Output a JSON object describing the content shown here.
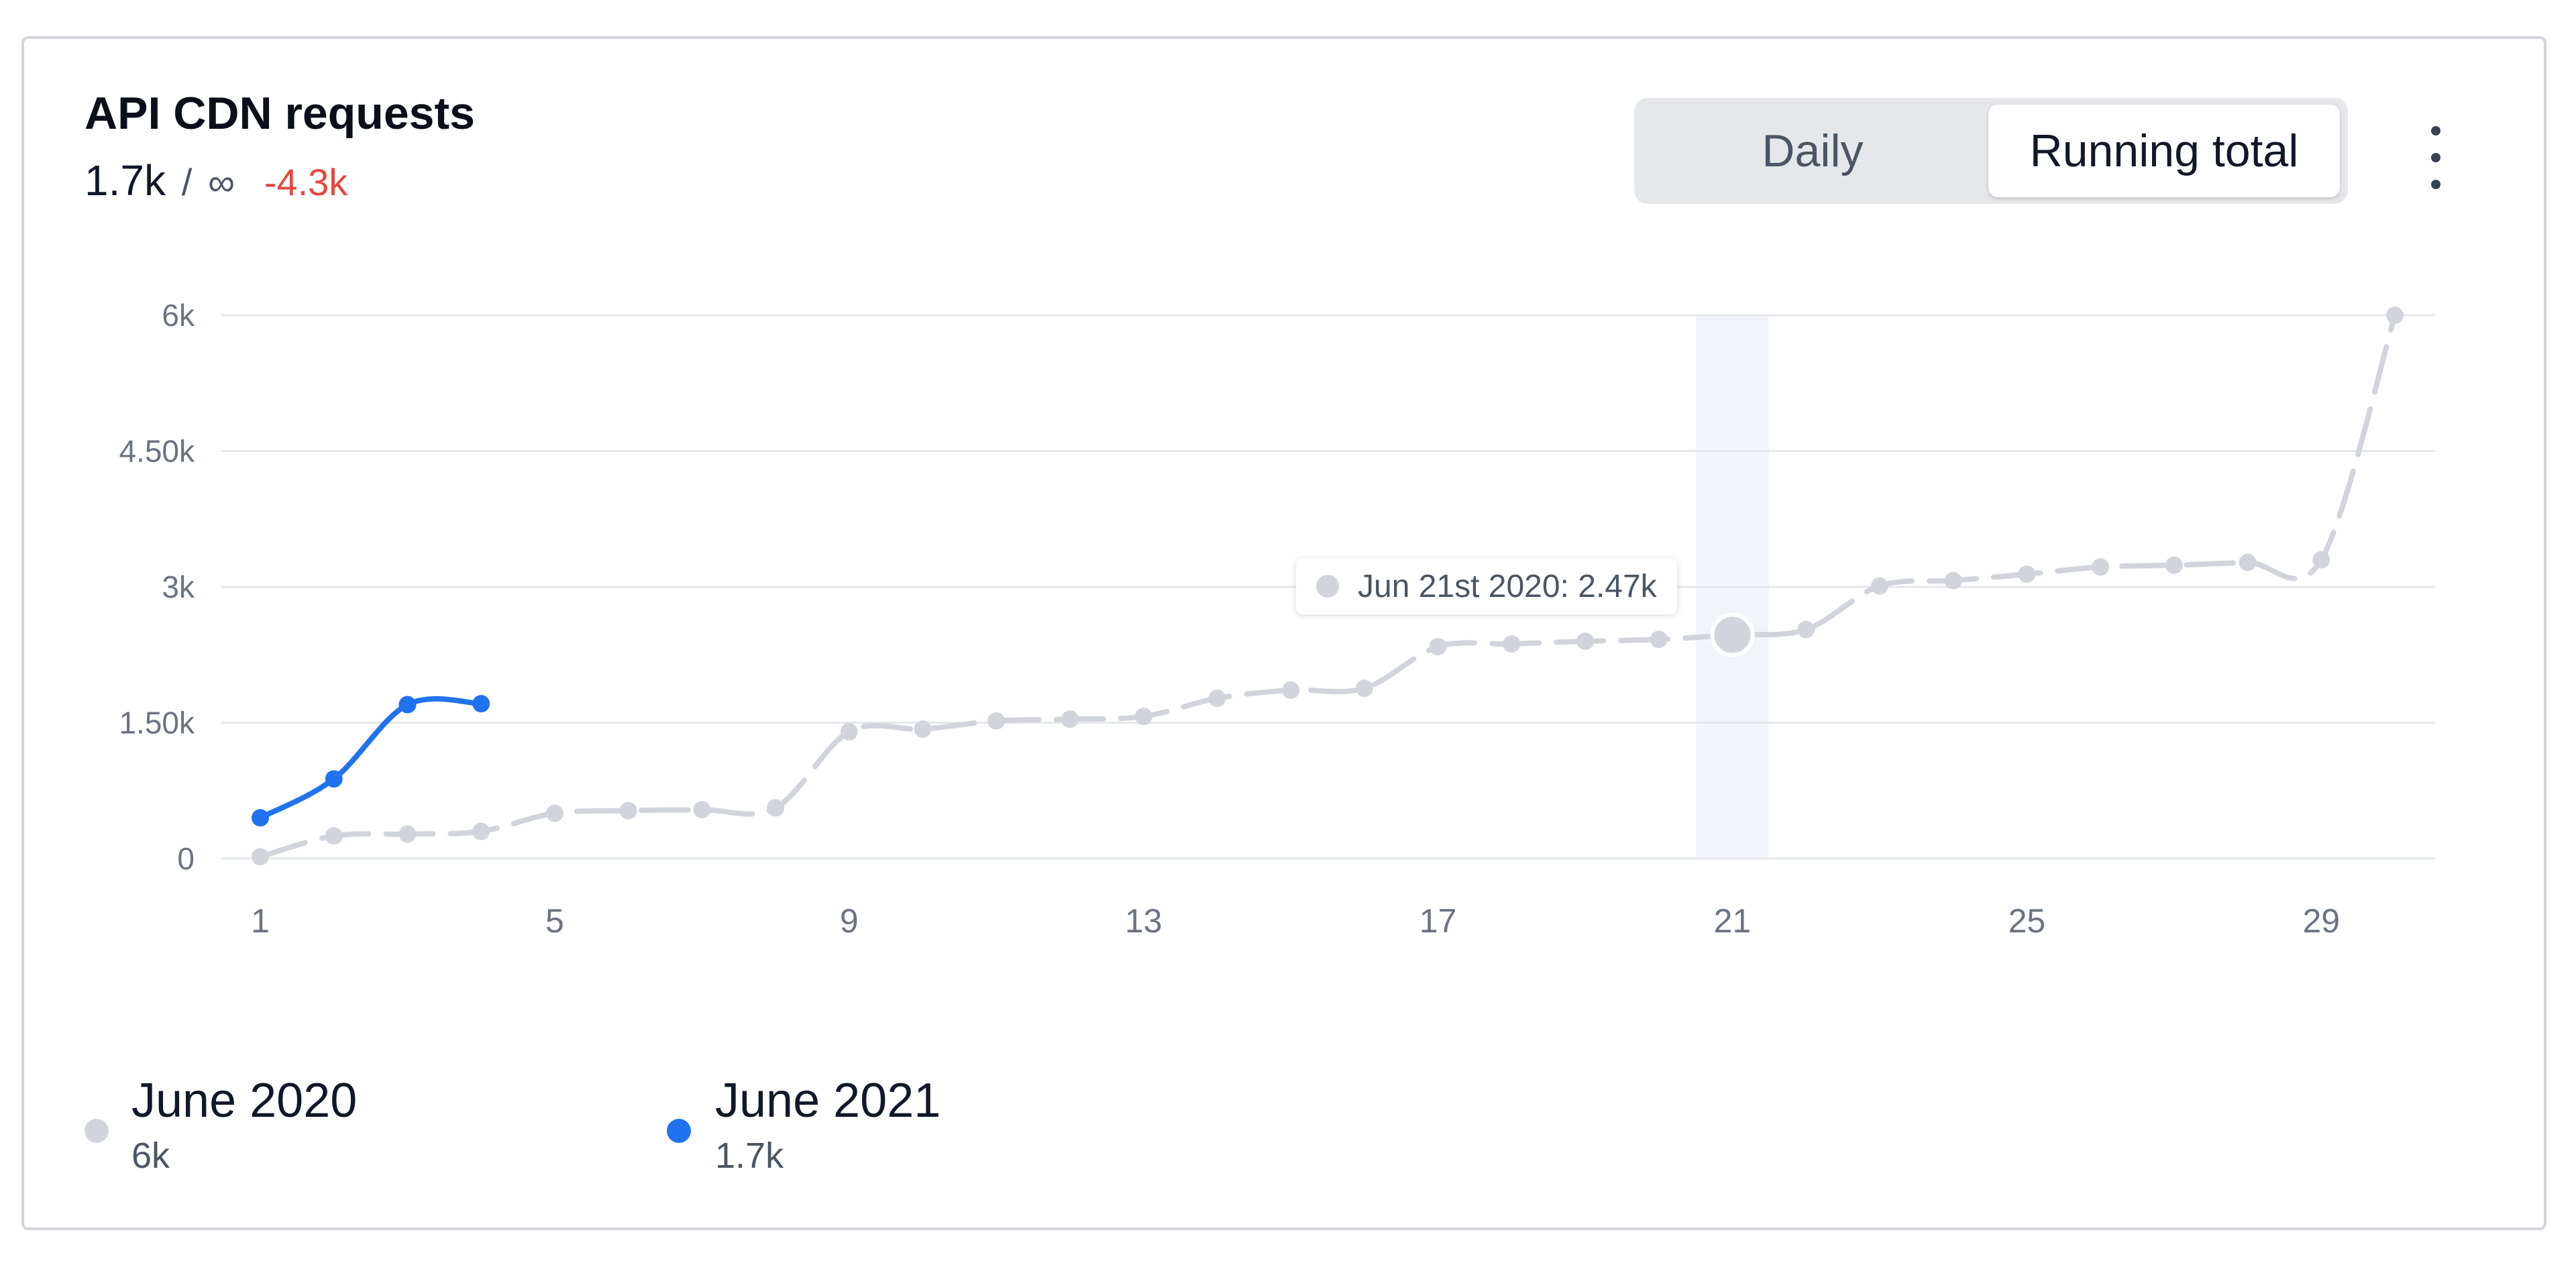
{
  "header": {
    "title": "API CDN requests",
    "current": "1.7k",
    "separator": "/",
    "limit": "∞",
    "delta": "-4.3k",
    "delta_color": "#e5483c"
  },
  "toggle": {
    "options": [
      "Daily",
      "Running total"
    ],
    "selected": "Running total"
  },
  "menu": {
    "icon": "more-vertical-icon"
  },
  "tooltip": {
    "label": "Jun 21st 2020: 2.47k",
    "marker_color": "#d1d5db"
  },
  "chart_data": {
    "type": "line",
    "yticks": [
      {
        "value": 0,
        "label": "0"
      },
      {
        "value": 1500,
        "label": "1.50k"
      },
      {
        "value": 3000,
        "label": "3k"
      },
      {
        "value": 4500,
        "label": "4.50k"
      },
      {
        "value": 6000,
        "label": "6k"
      }
    ],
    "xticks": [
      1,
      5,
      9,
      13,
      17,
      21,
      25,
      29
    ],
    "xlim": [
      1,
      30
    ],
    "ylim": [
      0,
      6000
    ],
    "grid": true,
    "highlight_x": 21,
    "series": [
      {
        "name": "June 2020",
        "color": "#d1d5db",
        "dashed": true,
        "x": [
          1,
          2,
          3,
          4,
          5,
          6,
          7,
          8,
          9,
          10,
          11,
          12,
          13,
          14,
          15,
          16,
          17,
          18,
          19,
          20,
          21,
          22,
          23,
          24,
          25,
          26,
          27,
          28,
          29,
          30
        ],
        "values": [
          20,
          250,
          270,
          300,
          500,
          530,
          540,
          560,
          1400,
          1430,
          1520,
          1540,
          1570,
          1770,
          1860,
          1880,
          2340,
          2370,
          2400,
          2420,
          2470,
          2530,
          3010,
          3070,
          3140,
          3220,
          3240,
          3270,
          3300,
          6000
        ]
      },
      {
        "name": "June 2021",
        "color": "#2172ee",
        "dashed": false,
        "x": [
          1,
          2,
          3,
          4
        ],
        "values": [
          450,
          880,
          1700,
          1710
        ]
      }
    ]
  },
  "legend": [
    {
      "name": "June 2020",
      "total": "6k",
      "color": "#d1d5db"
    },
    {
      "name": "June 2021",
      "total": "1.7k",
      "color": "#2172ee"
    }
  ]
}
